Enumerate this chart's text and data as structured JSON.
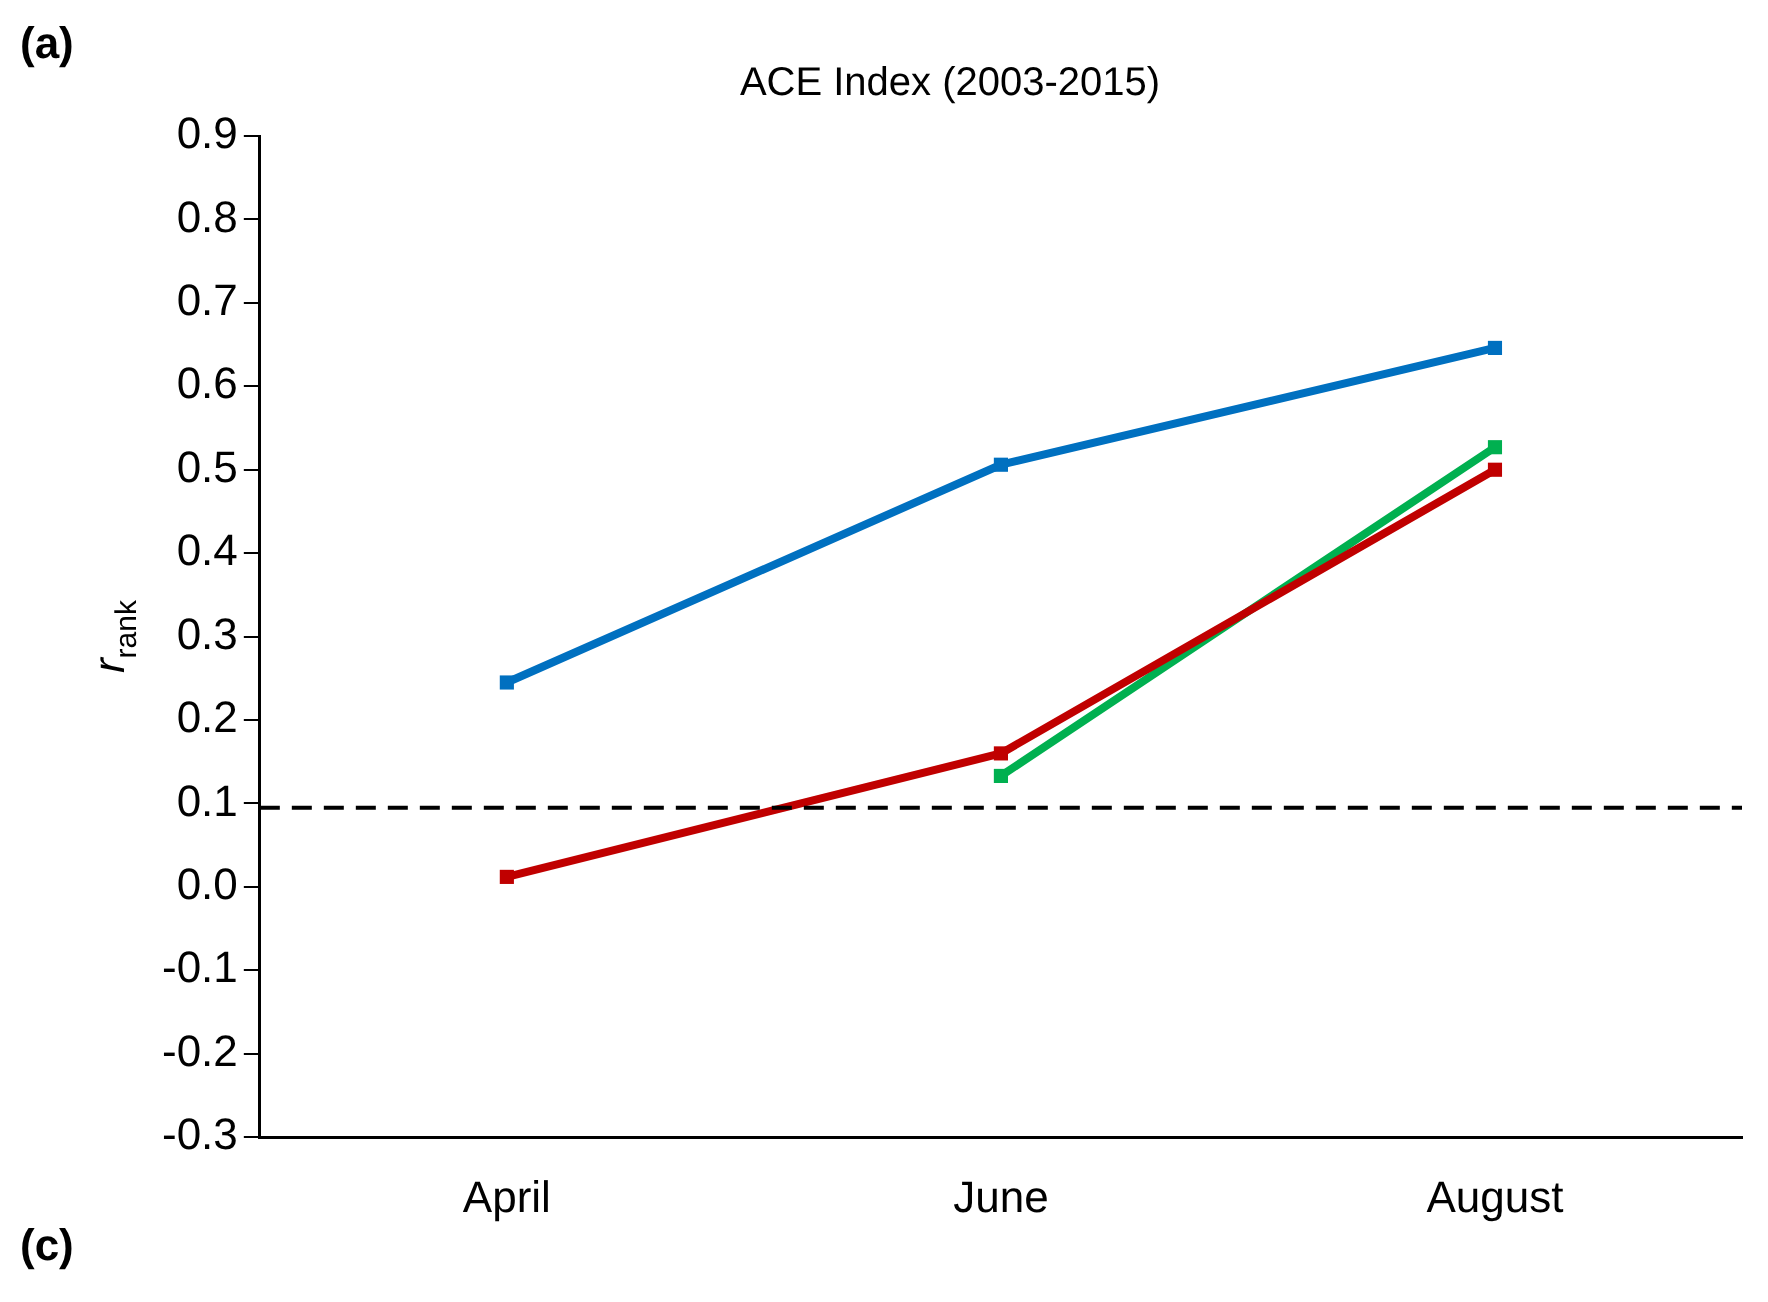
{
  "chart_data": {
    "type": "line",
    "title": "ACE Index (2003-2015)",
    "ylabel": "r$_{rank}$",
    "categories": [
      "April",
      "June",
      "August"
    ],
    "series": [
      {
        "color": "#0070c0",
        "values": [
          0.245,
          0.506,
          0.646
        ]
      },
      {
        "color": "#c00000",
        "values": [
          0.012,
          0.16,
          0.5
        ]
      },
      {
        "color": "#00b050",
        "values": [
          null,
          0.133,
          0.527
        ]
      }
    ],
    "ylim": [
      -0.3,
      0.9
    ],
    "yticks": [
      {
        "value": -0.3,
        "label": "-0.3"
      },
      {
        "value": -0.2,
        "label": "-0.2"
      },
      {
        "value": -0.1,
        "label": "-0.1"
      },
      {
        "value": 0,
        "label": "0.0"
      },
      {
        "value": 0.1,
        "label": "0.1"
      },
      {
        "value": 0.2,
        "label": "0.2"
      },
      {
        "value": 0.3,
        "label": "0.3"
      },
      {
        "value": 0.4,
        "label": "0.4"
      },
      {
        "value": 0.5,
        "label": "0.5"
      },
      {
        "value": 0.6,
        "label": "0.6"
      },
      {
        "value": 0.7,
        "label": "0.7"
      },
      {
        "value": 0.8,
        "label": "0.8"
      },
      {
        "value": 0.9,
        "label": "0.9"
      }
    ],
    "ref_lines": [
      {
        "axis": "y",
        "value": 0.095,
        "color": "#000000",
        "line_style": "dashed"
      }
    ],
    "annotations": [
      "(a)",
      "(c)"
    ],
    "grid": false,
    "legend": false,
    "marker": "square",
    "line_style": "solid"
  }
}
